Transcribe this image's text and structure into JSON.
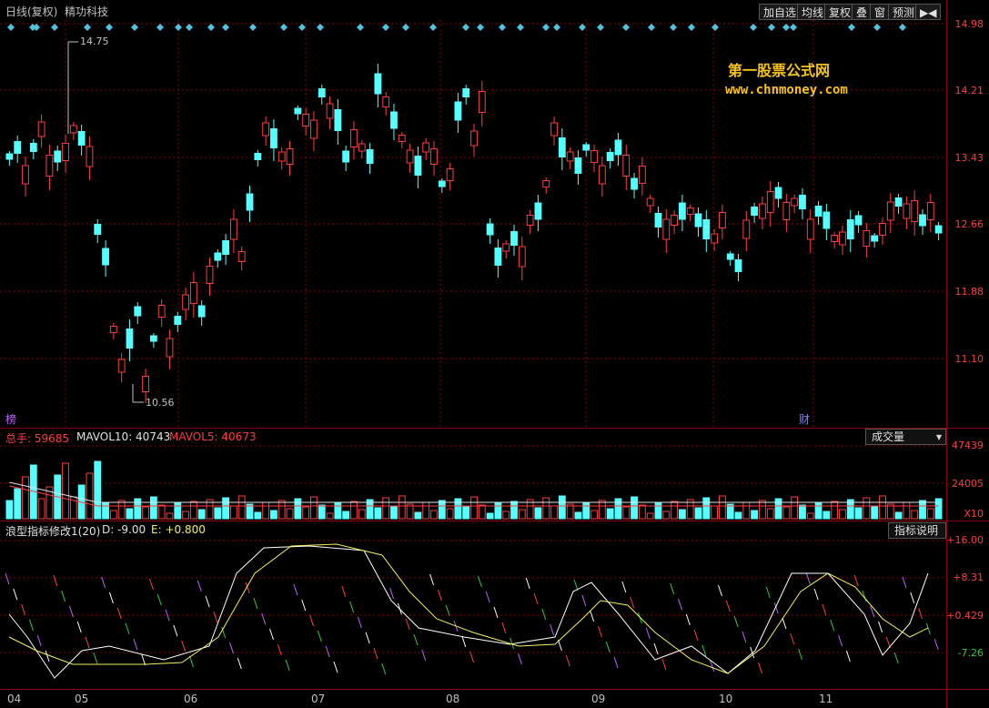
{
  "header": {
    "period_label": "日线(复权)",
    "stock_name": "精功科技",
    "buttons": [
      "加自选",
      "均线",
      "复权",
      "叠",
      "窗",
      "预测"
    ]
  },
  "watermark": {
    "title": "第一股票公式网",
    "url": "www.chnmoney.com"
  },
  "price_axis": [
    "14.98",
    "14.21",
    "13.43",
    "12.66",
    "11.88",
    "11.10"
  ],
  "price_annotations": {
    "high": "14.75",
    "low": "10.56"
  },
  "markers": {
    "left": "榜",
    "right": "财"
  },
  "volume_panel": {
    "total_label": "总手: 59685",
    "mavol10_label": "MAVOL10: 40743",
    "mavol5_label": "MAVOL5: 40673",
    "selector": "成交量",
    "axis": [
      "47439",
      "24005",
      "X10"
    ]
  },
  "indicator_panel": {
    "title": "浪型指标修改1(20)",
    "d_label": "D: -9.00",
    "e_label": "E: +0.800",
    "help_button": "指标说明",
    "axis": [
      "+16.00",
      "+8.31",
      "+0.429",
      "-7.26"
    ]
  },
  "x_axis": [
    "04",
    "05",
    "06",
    "07",
    "08",
    "09",
    "10",
    "11"
  ],
  "colors": {
    "up": "#ff3d3d",
    "down": "#54ffff",
    "grid": "#8b0000",
    "text": "#c0c0c0"
  },
  "icons": {
    "arrow": "right-arrow-icon",
    "scroll": "scroll-icon"
  }
}
